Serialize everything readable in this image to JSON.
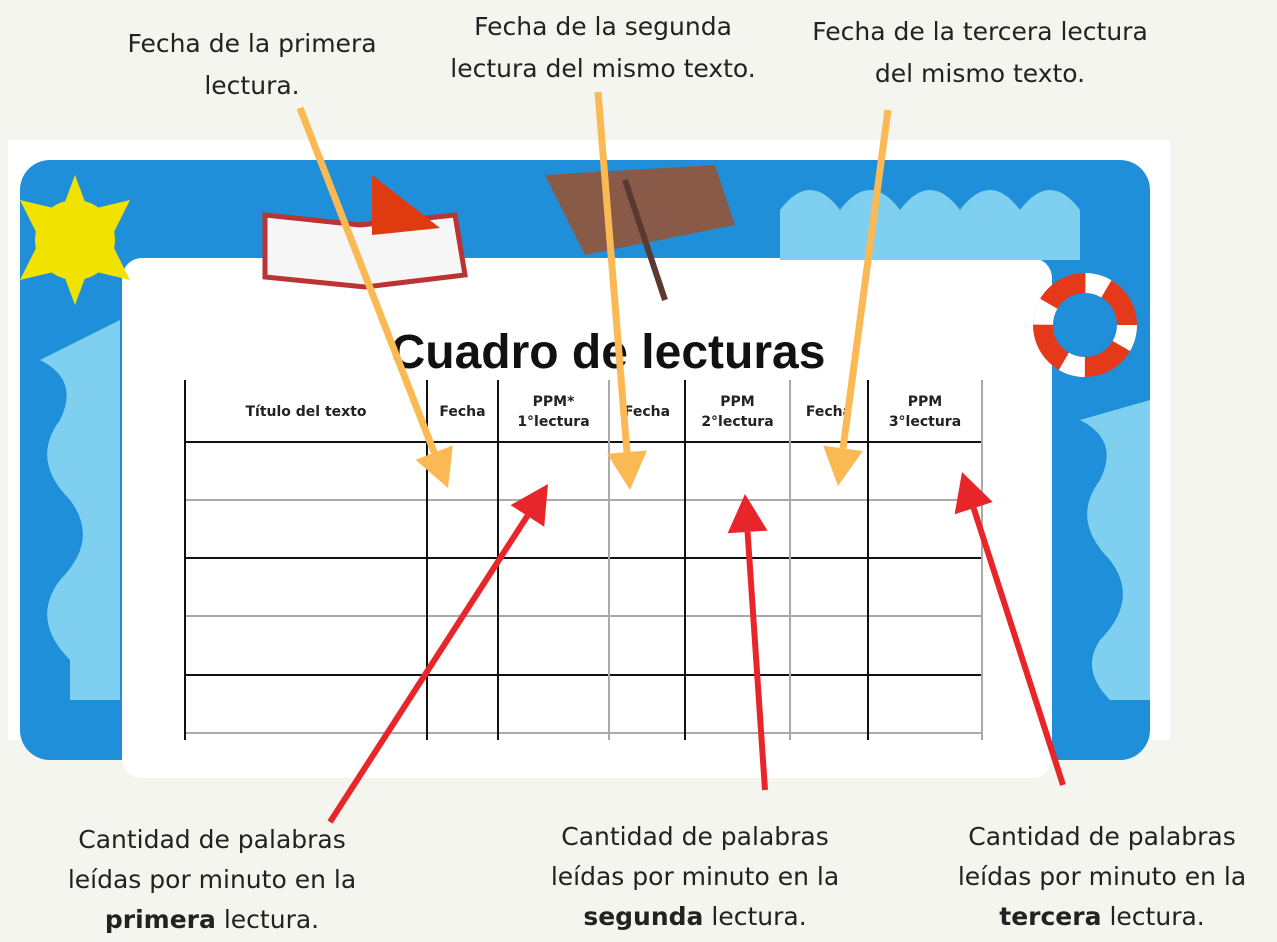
{
  "top_notes": [
    {
      "lines": [
        "Fecha de la primera",
        "lectura."
      ]
    },
    {
      "lines": [
        "Fecha de la segunda",
        "lectura del mismo texto."
      ]
    },
    {
      "lines": [
        "Fecha de la tercera lectura",
        "del mismo texto."
      ]
    }
  ],
  "bottom_notes": [
    {
      "lines": [
        "Cantidad de palabras",
        "leídas por minuto en la"
      ],
      "bold": "primera",
      "rest": "lectura."
    },
    {
      "lines": [
        "Cantidad de palabras",
        "leídas por minuto en la"
      ],
      "bold": "segunda",
      "rest": "lectura."
    },
    {
      "lines": [
        "Cantidad de palabras",
        "leídas por minuto en la"
      ],
      "bold": "tercera",
      "rest": "lectura."
    }
  ],
  "table": {
    "title": "Cuadro de lecturas",
    "headers": [
      [
        "Título del texto"
      ],
      [
        "Fecha"
      ],
      [
        "PPM*",
        "1°lectura"
      ],
      [
        "Fecha"
      ],
      [
        "PPM",
        "2°lectura"
      ],
      [
        "Fecha"
      ],
      [
        "PPM",
        "3°lectura"
      ]
    ]
  }
}
